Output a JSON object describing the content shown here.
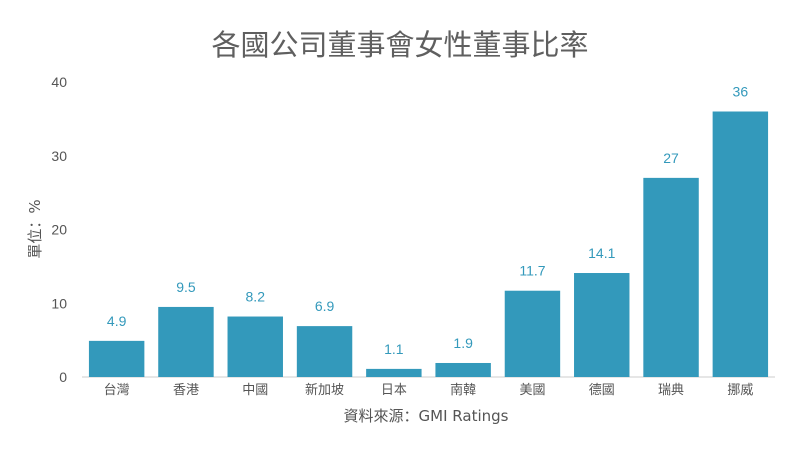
{
  "chart_data": {
    "type": "bar",
    "title": "各國公司董事會女性董事比率",
    "xlabel": "資料來源：GMI Ratings",
    "ylabel": "單位：%",
    "categories": [
      "台灣",
      "香港",
      "中國",
      "新加坡",
      "日本",
      "南韓",
      "美國",
      "德國",
      "瑞典",
      "挪威"
    ],
    "values": [
      4.9,
      9.5,
      8.2,
      6.9,
      1.1,
      1.9,
      11.7,
      14.1,
      27,
      36
    ],
    "value_labels": [
      "4.9",
      "9.5",
      "8.2",
      "6.9",
      "1.1",
      "1.9",
      "11.7",
      "14.1",
      "27",
      "36"
    ],
    "ylim": [
      0,
      40
    ],
    "yticks": [
      0,
      10,
      20,
      30,
      40
    ],
    "grid": false,
    "legend": "none",
    "colors": {
      "bar": "#3399bb",
      "value_label": "#3399bb",
      "text": "#555555",
      "title": "#5f5f5f",
      "axis": "#cccccc"
    }
  }
}
